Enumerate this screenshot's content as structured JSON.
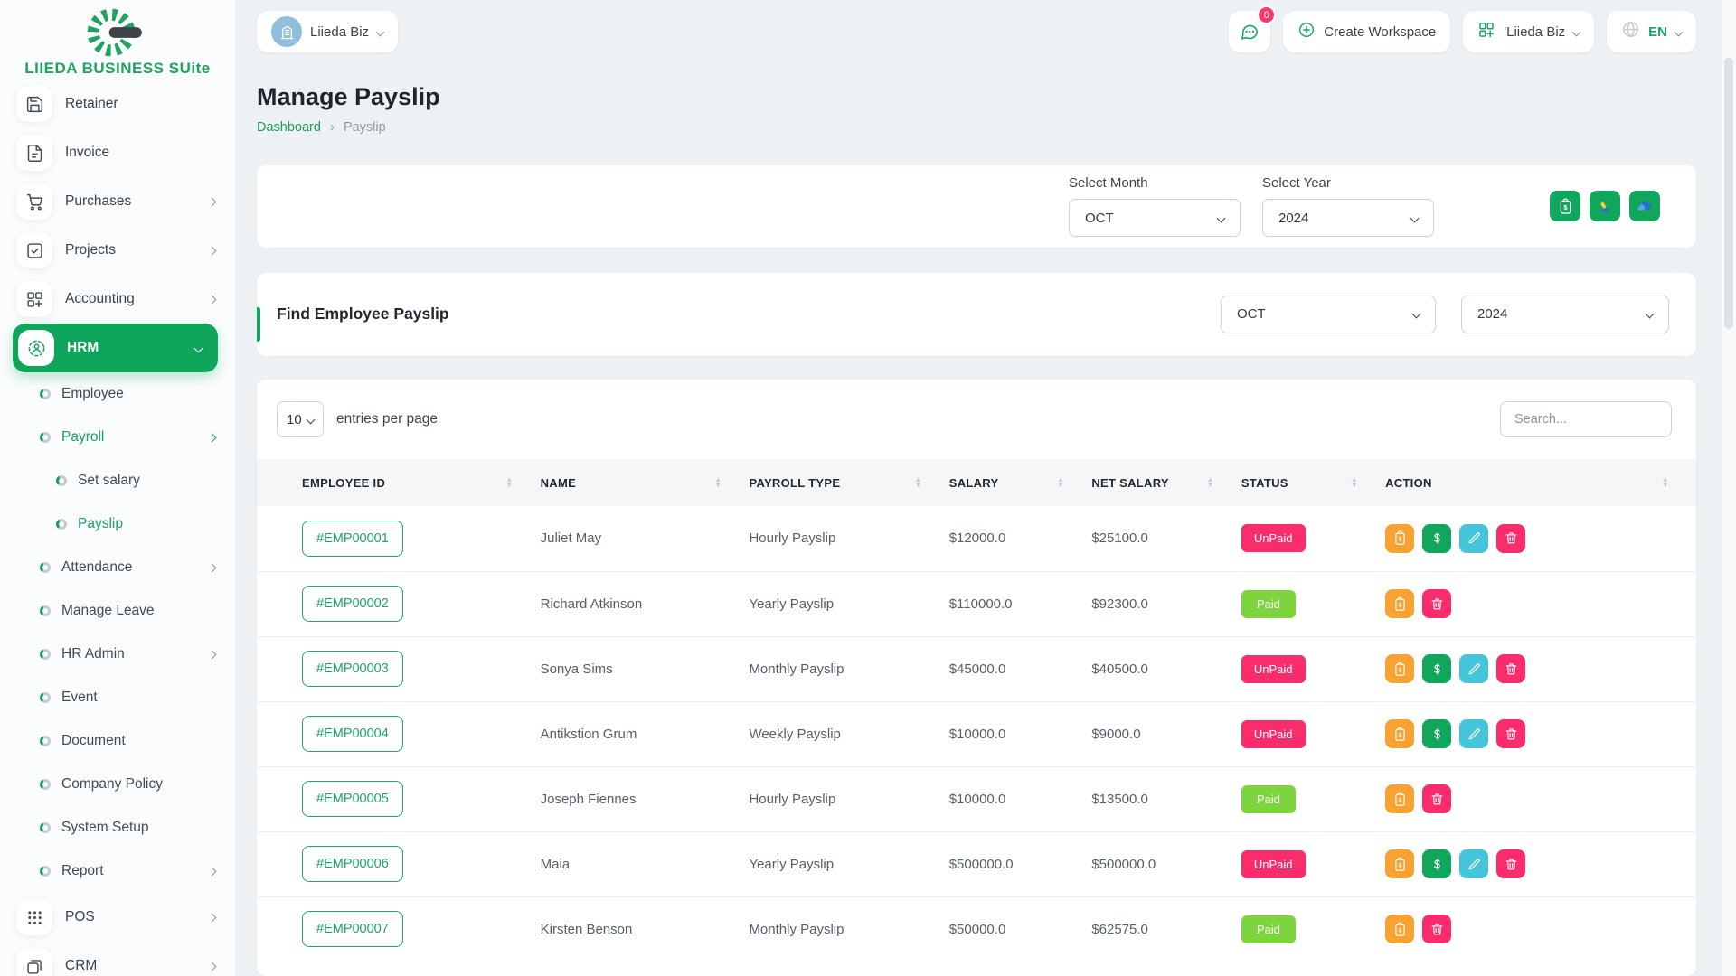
{
  "brand": {
    "title": "LIIEDA BUSINESS SUite"
  },
  "topbar": {
    "workspace_name": "Liieda Biz",
    "chat_badge": "0",
    "create_workspace": "Create Workspace",
    "workspace_switcher": "'Liieda Biz",
    "language": "EN"
  },
  "page": {
    "title": "Manage Payslip",
    "breadcrumb_home": "Dashboard",
    "breadcrumb_current": "Payslip"
  },
  "filters": {
    "month_label": "Select Month",
    "month_value": "OCT",
    "year_label": "Select Year",
    "year_value": "2024"
  },
  "find_section": {
    "title": "Find Employee Payslip",
    "month_value": "OCT",
    "year_value": "2024"
  },
  "table": {
    "entries_value": "10",
    "entries_label": "entries per page",
    "search_placeholder": "Search...",
    "columns": [
      "EMPLOYEE ID",
      "NAME",
      "PAYROLL TYPE",
      "SALARY",
      "NET SALARY",
      "STATUS",
      "ACTION"
    ],
    "rows": [
      {
        "employee_id": "#EMP00001",
        "name": "Juliet May",
        "payroll_type": "Hourly Payslip",
        "salary": "$12000.0",
        "net_salary": "$25100.0",
        "status": "UnPaid",
        "actions": [
          "payslip",
          "pay",
          "edit",
          "delete"
        ]
      },
      {
        "employee_id": "#EMP00002",
        "name": "Richard Atkinson",
        "payroll_type": "Yearly Payslip",
        "salary": "$110000.0",
        "net_salary": "$92300.0",
        "status": "Paid",
        "actions": [
          "payslip",
          "delete"
        ]
      },
      {
        "employee_id": "#EMP00003",
        "name": "Sonya Sims",
        "payroll_type": "Monthly Payslip",
        "salary": "$45000.0",
        "net_salary": "$40500.0",
        "status": "UnPaid",
        "actions": [
          "payslip",
          "pay",
          "edit",
          "delete"
        ]
      },
      {
        "employee_id": "#EMP00004",
        "name": "Antikstion Grum",
        "payroll_type": "Weekly Payslip",
        "salary": "$10000.0",
        "net_salary": "$9000.0",
        "status": "UnPaid",
        "actions": [
          "payslip",
          "pay",
          "edit",
          "delete"
        ]
      },
      {
        "employee_id": "#EMP00005",
        "name": "Joseph Fiennes",
        "payroll_type": "Hourly Payslip",
        "salary": "$10000.0",
        "net_salary": "$13500.0",
        "status": "Paid",
        "actions": [
          "payslip",
          "delete"
        ]
      },
      {
        "employee_id": "#EMP00006",
        "name": "Maia",
        "payroll_type": "Yearly Payslip",
        "salary": "$500000.0",
        "net_salary": "$500000.0",
        "status": "UnPaid",
        "actions": [
          "payslip",
          "pay",
          "edit",
          "delete"
        ]
      },
      {
        "employee_id": "#EMP00007",
        "name": "Kirsten Benson",
        "payroll_type": "Monthly Payslip",
        "salary": "$50000.0",
        "net_salary": "$62575.0",
        "status": "Paid",
        "actions": [
          "payslip",
          "delete"
        ]
      }
    ]
  },
  "sidebar": {
    "items": [
      {
        "label": "Retainer",
        "icon": "save-icon",
        "level": 0
      },
      {
        "label": "Invoice",
        "icon": "invoice-icon",
        "level": 0
      },
      {
        "label": "Purchases",
        "icon": "cart-icon",
        "level": 0,
        "chevron": "right"
      },
      {
        "label": "Projects",
        "icon": "check-square-icon",
        "level": 0,
        "chevron": "right"
      },
      {
        "label": "Accounting",
        "icon": "accounting-icon",
        "level": 0,
        "chevron": "right"
      },
      {
        "label": "HRM",
        "icon": "hrm-icon",
        "level": 0,
        "chevron": "down",
        "active": true
      },
      {
        "label": "Employee",
        "level": 1
      },
      {
        "label": "Payroll",
        "level": 1,
        "chevron": "right",
        "highlighted": true
      },
      {
        "label": "Set salary",
        "level": 2
      },
      {
        "label": "Payslip",
        "level": 2,
        "highlighted": true
      },
      {
        "label": "Attendance",
        "level": 1,
        "chevron": "right"
      },
      {
        "label": "Manage Leave",
        "level": 1
      },
      {
        "label": "HR Admin",
        "level": 1,
        "chevron": "right"
      },
      {
        "label": "Event",
        "level": 1
      },
      {
        "label": "Document",
        "level": 1
      },
      {
        "label": "Company Policy",
        "level": 1
      },
      {
        "label": "System Setup",
        "level": 1
      },
      {
        "label": "Report",
        "level": 1,
        "chevron": "right"
      },
      {
        "label": "POS",
        "icon": "pos-icon",
        "level": 0,
        "chevron": "right"
      },
      {
        "label": "CRM",
        "icon": "crm-icon",
        "level": 0,
        "chevron": "right"
      }
    ]
  },
  "colors": {
    "primary_green": "#12A563",
    "badge_unpaid": "#FA2C6C",
    "badge_paid": "#7DD53E",
    "action_orange": "#F9A234",
    "action_green": "#10A65B",
    "action_cyan": "#45C5DA",
    "action_pink": "#FA2C6C"
  }
}
